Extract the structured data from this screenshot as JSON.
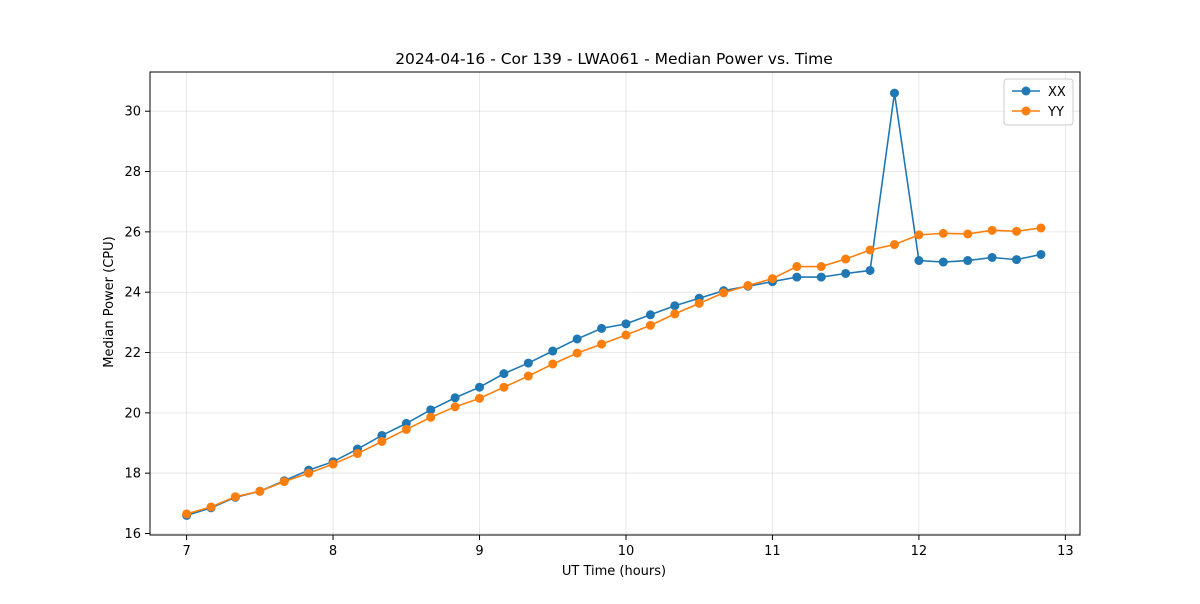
{
  "chart_data": {
    "type": "line",
    "title": "2024-04-16 - Cor 139 - LWA061 - Median Power vs. Time",
    "xlabel": "UT Time (hours)",
    "ylabel": "Median Power (CPU)",
    "xlim": [
      6.75,
      13.1
    ],
    "ylim": [
      15.95,
      31.3
    ],
    "xticks": [
      7,
      8,
      9,
      10,
      11,
      12,
      13
    ],
    "yticks": [
      16,
      18,
      20,
      22,
      24,
      26,
      28,
      30
    ],
    "grid": true,
    "legend_position": "top-right",
    "x": [
      7.0,
      7.1667,
      7.3333,
      7.5,
      7.6667,
      7.8333,
      8.0,
      8.1667,
      8.3333,
      8.5,
      8.6667,
      8.8333,
      9.0,
      9.1667,
      9.3333,
      9.5,
      9.6667,
      9.8333,
      10.0,
      10.1667,
      10.3333,
      10.5,
      10.6667,
      10.8333,
      11.0,
      11.1667,
      11.3333,
      11.5,
      11.6667,
      11.8333,
      12.0,
      12.1667,
      12.3333,
      12.5,
      12.6667,
      12.8333
    ],
    "series": [
      {
        "name": "XX",
        "color": "#1f77b4",
        "values": [
          16.6,
          16.85,
          17.2,
          17.4,
          17.75,
          18.1,
          18.38,
          18.8,
          19.25,
          19.65,
          20.1,
          20.5,
          20.85,
          21.3,
          21.65,
          22.05,
          22.45,
          22.8,
          22.95,
          23.25,
          23.55,
          23.8,
          24.05,
          24.2,
          24.35,
          24.5,
          24.5,
          24.62,
          24.72,
          30.6,
          25.05,
          25.0,
          25.05,
          25.15,
          25.08,
          25.25
        ]
      },
      {
        "name": "YY",
        "color": "#ff7f0e",
        "values": [
          16.65,
          16.88,
          17.22,
          17.4,
          17.72,
          18.0,
          18.3,
          18.65,
          19.05,
          19.45,
          19.85,
          20.2,
          20.48,
          20.85,
          21.22,
          21.62,
          21.98,
          22.28,
          22.58,
          22.9,
          23.28,
          23.63,
          23.98,
          24.22,
          24.45,
          24.85,
          24.85,
          25.1,
          25.4,
          25.58,
          25.9,
          25.95,
          25.93,
          26.05,
          26.02,
          26.13
        ]
      }
    ]
  }
}
